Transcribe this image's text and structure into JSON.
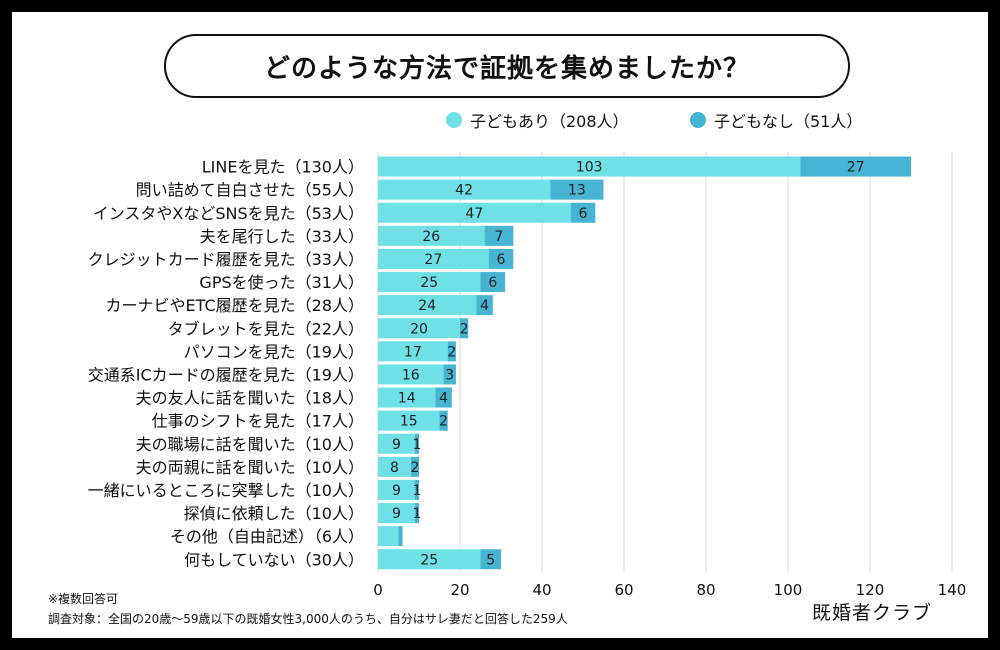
{
  "title": "どのような方法で証拠を集めましたか？",
  "legend": [
    {
      "label": "子どもあり（208人）",
      "color": "#6fe0e6"
    },
    {
      "label": "子どもなし（51人）",
      "color": "#46b4d2"
    }
  ],
  "notes": {
    "multi": "※複数回答可",
    "survey": "調査対象：全国の20歳〜59歳以下の既婚女性3,000人のうち、自分はサレ妻だと回答した259人"
  },
  "brand": "既婚者クラブ",
  "chart_data": {
    "type": "bar",
    "orientation": "horizontal",
    "stacked": true,
    "title": "どのような方法で証拠を集めましたか？",
    "xlim": [
      0,
      140
    ],
    "xticks": [
      0,
      20,
      40,
      60,
      80,
      100,
      120,
      140
    ],
    "grid": true,
    "legend_position": "top-right",
    "categories": [
      "LINEを見た（130人）",
      "問い詰めて自白させた（55人）",
      "インスタやXなどSNSを見た（53人）",
      "夫を尾行した（33人）",
      "クレジットカード履歴を見た（33人）",
      "GPSを使った（31人）",
      "カーナビやETC履歴を見た（28人）",
      "タブレットを見た（22人）",
      "パソコンを見た（19人）",
      "交通系ICカードの履歴を見た（19人）",
      "夫の友人に話を聞いた（18人）",
      "仕事のシフトを見た（17人）",
      "夫の職場に話を聞いた（10人）",
      "夫の両親に話を聞いた（10人）",
      "一緒にいるところに突撃した（10人）",
      "探偵に依頼した（10人）",
      "その他（自由記述）（6人）",
      "何もしていない（30人）"
    ],
    "series": [
      {
        "name": "子どもあり（208人）",
        "color": "#6fe0e6",
        "values": [
          103,
          42,
          47,
          26,
          27,
          25,
          24,
          20,
          17,
          16,
          14,
          15,
          9,
          8,
          9,
          9,
          5,
          25
        ],
        "labels": [
          "103",
          "42",
          "47",
          "26",
          "27",
          "25",
          "24",
          "20",
          "17",
          "16",
          "14",
          "15",
          "9",
          "8",
          "9",
          "9",
          "",
          "25"
        ]
      },
      {
        "name": "子どもなし（51人）",
        "color": "#46b4d2",
        "values": [
          27,
          13,
          6,
          7,
          6,
          6,
          4,
          2,
          2,
          3,
          4,
          2,
          1,
          2,
          1,
          1,
          1,
          5
        ],
        "labels": [
          "27",
          "13",
          "6",
          "7",
          "6",
          "6",
          "4",
          "2",
          "2",
          "3",
          "4",
          "2",
          "1",
          "2",
          "1",
          "1",
          "",
          "5"
        ]
      }
    ]
  }
}
